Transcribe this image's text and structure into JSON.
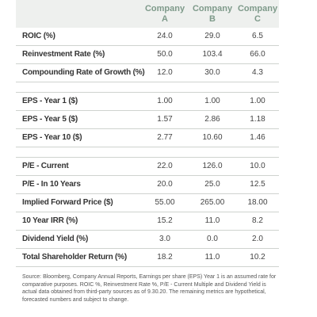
{
  "table": {
    "columns": [
      "Company A",
      "Company B",
      "Company C"
    ],
    "groups": [
      [
        {
          "label": "ROIC (%)",
          "values": [
            "24.0",
            "29.0",
            "6.5"
          ]
        },
        {
          "label": "Reinvestment Rate (%)",
          "values": [
            "50.0",
            "103.4",
            "66.0"
          ]
        },
        {
          "label": "Compounding Rate of Growth (%)",
          "values": [
            "12.0",
            "30.0",
            "4.3"
          ]
        }
      ],
      [
        {
          "label": "EPS - Year 1 ($)",
          "values": [
            "1.00",
            "1.00",
            "1.00"
          ]
        },
        {
          "label": "EPS - Year 5 ($)",
          "values": [
            "1.57",
            "2.86",
            "1.18"
          ]
        },
        {
          "label": "EPS - Year 10 ($)",
          "values": [
            "2.77",
            "10.60",
            "1.46"
          ]
        }
      ],
      [
        {
          "label": "P/E - Current",
          "values": [
            "22.0",
            "126.0",
            "10.0"
          ]
        },
        {
          "label": "P/E - In 10 Years",
          "values": [
            "20.0",
            "25.0",
            "12.5"
          ]
        },
        {
          "label": "Implied Forward Price ($)",
          "values": [
            "55.00",
            "265.00",
            "18.00"
          ]
        },
        {
          "label": "10 Year IRR (%)",
          "values": [
            "15.2",
            "11.0",
            "8.2"
          ]
        },
        {
          "label": "Dividend Yield (%)",
          "values": [
            "3.0",
            "0.0",
            "2.0"
          ]
        },
        {
          "label": "Total Shareholder Return (%)",
          "values": [
            "18.2",
            "11.0",
            "10.2"
          ]
        }
      ]
    ]
  },
  "note": "Source: Bloomberg, Company Annual Reports, Earnings per share (EPS) Year 1 is an assumed rate for comparative purposes.  ROIC %, Reinvestment Rate %, P/E - Current Multiple and Dividend Yield is actual data obtained from third-party sources as of 9.30.20. The remaining metrics are hypothetical, forecasted numbers and subject to change."
}
